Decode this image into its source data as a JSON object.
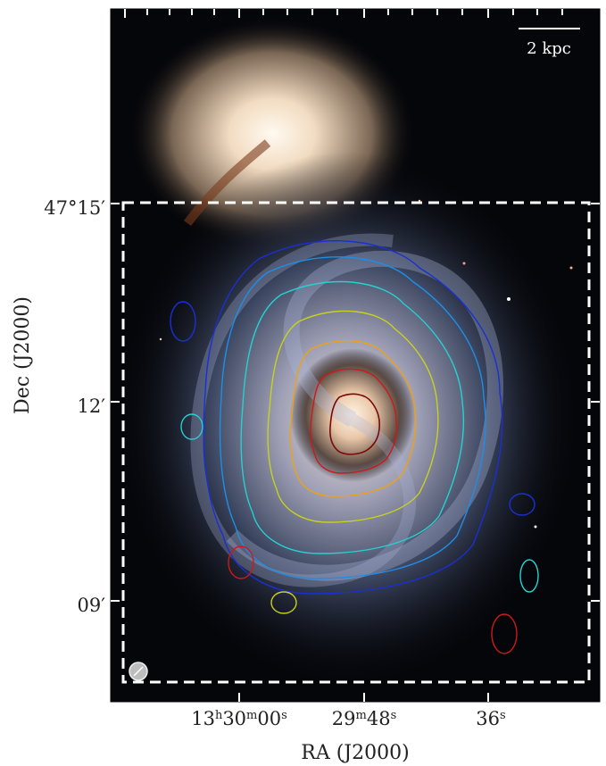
{
  "scale_bar": {
    "label": "2 kpc"
  },
  "axes": {
    "xlabel": "RA (J2000)",
    "ylabel": "Dec (J2000)",
    "x_ticks": [
      {
        "h": "13",
        "m": "30",
        "s": "00",
        "unit": "s"
      },
      {
        "m": "29",
        "s": "48",
        "unit": "s"
      },
      {
        "s": "36",
        "unit": "s"
      }
    ],
    "y_ticks": [
      {
        "label": "47°15′"
      },
      {
        "label": "12′"
      },
      {
        "label": "09′"
      }
    ]
  },
  "colors": {
    "background": "#000000",
    "contour_levels": [
      "#1a2fd6",
      "#1e8ee6",
      "#24d2d2",
      "#c8d020",
      "#f0a010",
      "#d01818",
      "#7a0a0a"
    ],
    "dashed_box": "#ffffff"
  }
}
